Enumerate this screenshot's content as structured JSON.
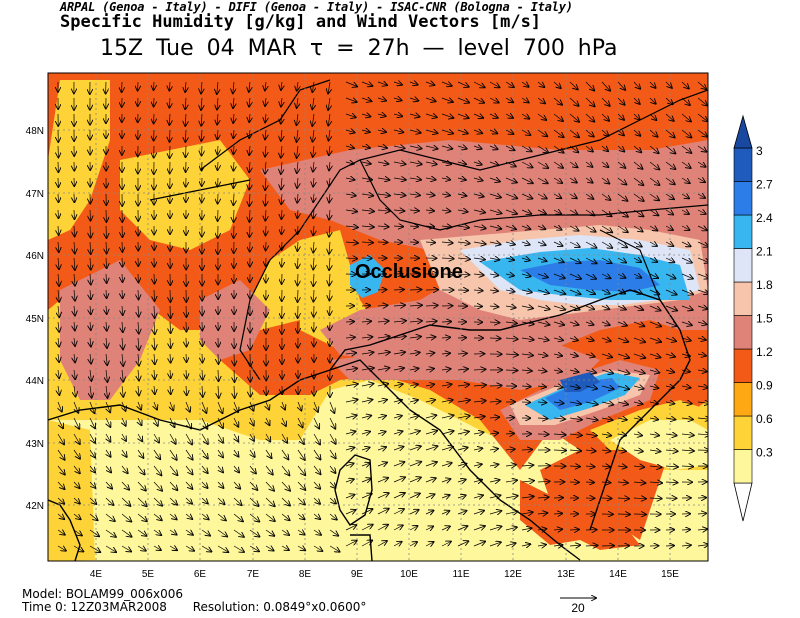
{
  "header": {
    "credits": "ARPAL (Genoa - Italy)  -  DIFI (Genoa - Italy)  -  ISAC-CNR (Bologna - Italy)",
    "title": "Specific Humidity [g/kg] and Wind Vectors [m/s]",
    "subtitle": "15Z Tue 04 MAR   τ = 27h   —   level 700 hPa"
  },
  "map": {
    "annotation": "Occlusione",
    "lon_labels": [
      "4E",
      "5E",
      "6E",
      "7E",
      "8E",
      "9E",
      "10E",
      "11E",
      "12E",
      "13E",
      "14E",
      "15E"
    ],
    "lat_labels": [
      "48N",
      "47N",
      "46N",
      "45N",
      "44N",
      "43N",
      "42N"
    ]
  },
  "colorbar": {
    "ticks": [
      "3",
      "2.7",
      "2.4",
      "2.1",
      "1.8",
      "1.5",
      "1.2",
      "0.9",
      "0.6",
      "0.3"
    ],
    "colors": [
      "#fef79b",
      "#fed338",
      "#fea813",
      "#f45a17",
      "#df8277",
      "#f6c5ab",
      "#dde5f6",
      "#37b6f0",
      "#2c7de8",
      "#1e5bbc",
      "#1948a0"
    ]
  },
  "footer": {
    "model": "Model: BOLAM99_006x006",
    "time0": "Time 0: 12Z03MAR2008",
    "resolution": "Resolution: 0.0849°x0.0600°",
    "vector_ref": "20"
  }
}
